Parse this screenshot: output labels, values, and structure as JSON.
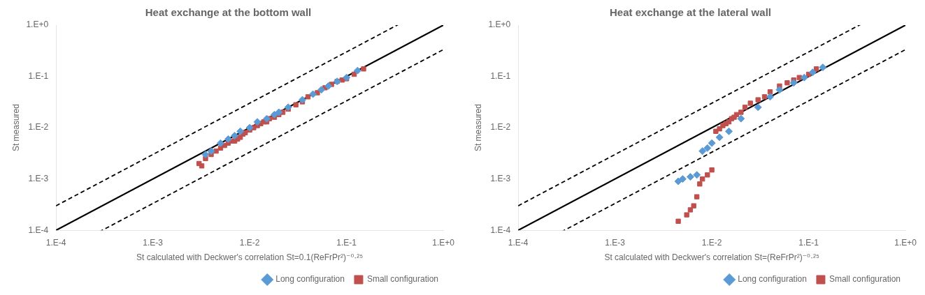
{
  "chart_data": [
    {
      "type": "scatter",
      "title": "Heat exchange at the bottom wall",
      "x_label": "St calculated with Deckwer's correlation St=0.1(ReFrPr²)⁻⁰·²⁵",
      "y_label": "St measured",
      "log": true,
      "grid": false,
      "legend": "lower right",
      "xlim": [
        0.0001,
        1
      ],
      "ylim": [
        0.0001,
        1
      ],
      "xticks": [
        {
          "value": 0.0001,
          "label": "1.E-4"
        },
        {
          "value": 0.001,
          "label": "1.E-3"
        },
        {
          "value": 0.01,
          "label": "1.E-2"
        },
        {
          "value": 0.1,
          "label": "1.E-1"
        },
        {
          "value": 1,
          "label": "1.E+0"
        }
      ],
      "yticks": [
        {
          "value": 0.0001,
          "label": "1.E-4"
        },
        {
          "value": 0.001,
          "label": "1.E-3"
        },
        {
          "value": 0.01,
          "label": "1.E-2"
        },
        {
          "value": 0.1,
          "label": "1.E-1"
        },
        {
          "value": 1,
          "label": "1.E+0"
        }
      ],
      "reference_lines": [
        {
          "factor": 1,
          "color": "black",
          "line_style": "solid"
        },
        {
          "factor": 3.0,
          "color": "black",
          "line_style": "dashed"
        }
      ],
      "series": [
        {
          "name": "Long configuration",
          "color": "#5b9bd5",
          "marker": "diamond",
          "x": [
            0.0035,
            0.004,
            0.005,
            0.006,
            0.007,
            0.008,
            0.01,
            0.012,
            0.015,
            0.018,
            0.02,
            0.025,
            0.035,
            0.045,
            0.055,
            0.065,
            0.08,
            0.1,
            0.13
          ],
          "values": [
            0.003,
            0.0035,
            0.005,
            0.006,
            0.007,
            0.0085,
            0.01,
            0.013,
            0.015,
            0.018,
            0.02,
            0.025,
            0.035,
            0.045,
            0.055,
            0.065,
            0.08,
            0.095,
            0.13
          ]
        },
        {
          "name": "Small configuration",
          "color": "#c0504d",
          "marker": "square",
          "x": [
            0.003,
            0.0032,
            0.0035,
            0.004,
            0.0045,
            0.005,
            0.0055,
            0.006,
            0.0065,
            0.007,
            0.0075,
            0.008,
            0.0085,
            0.009,
            0.01,
            0.011,
            0.012,
            0.013,
            0.014,
            0.015,
            0.016,
            0.018,
            0.02,
            0.022,
            0.025,
            0.03,
            0.035,
            0.04,
            0.05,
            0.06,
            0.07,
            0.08,
            0.09,
            0.1,
            0.12,
            0.15
          ],
          "values": [
            0.002,
            0.0018,
            0.0025,
            0.003,
            0.0035,
            0.004,
            0.0045,
            0.005,
            0.0055,
            0.0055,
            0.006,
            0.0065,
            0.0075,
            0.008,
            0.009,
            0.01,
            0.011,
            0.012,
            0.013,
            0.013,
            0.015,
            0.016,
            0.018,
            0.02,
            0.023,
            0.028,
            0.032,
            0.04,
            0.048,
            0.06,
            0.07,
            0.08,
            0.085,
            0.09,
            0.11,
            0.14
          ]
        }
      ]
    },
    {
      "type": "scatter",
      "title": "Heat exchange at the lateral wall",
      "x_label": "St calculated with Deckwer's correlation St=(ReFrPr²)⁻⁰·²⁵",
      "y_label": "St measured",
      "log": true,
      "grid": false,
      "legend": "lower right",
      "xlim": [
        0.0001,
        1
      ],
      "ylim": [
        0.0001,
        1
      ],
      "xticks": [
        {
          "value": 0.0001,
          "label": "1.E-4"
        },
        {
          "value": 0.001,
          "label": "1.E-3"
        },
        {
          "value": 0.01,
          "label": "1.E-2"
        },
        {
          "value": 0.1,
          "label": "1.E-1"
        },
        {
          "value": 1,
          "label": "1.E+0"
        }
      ],
      "yticks": [
        {
          "value": 0.0001,
          "label": "1.E-4"
        },
        {
          "value": 0.001,
          "label": "1.E-3"
        },
        {
          "value": 0.01,
          "label": "1.E-2"
        },
        {
          "value": 0.1,
          "label": "1.E-1"
        },
        {
          "value": 1,
          "label": "1.E+0"
        }
      ],
      "reference_lines": [
        {
          "factor": 1,
          "color": "black",
          "line_style": "solid"
        },
        {
          "factor": 3.0,
          "color": "black",
          "line_style": "dashed"
        }
      ],
      "series": [
        {
          "name": "Long configuration",
          "color": "#5b9bd5",
          "marker": "diamond",
          "x": [
            0.0045,
            0.005,
            0.006,
            0.007,
            0.008,
            0.009,
            0.01,
            0.012,
            0.015,
            0.02,
            0.03,
            0.04,
            0.05,
            0.07,
            0.09,
            0.11,
            0.14
          ],
          "values": [
            0.0009,
            0.001,
            0.0011,
            0.0012,
            0.0035,
            0.004,
            0.005,
            0.0065,
            0.0085,
            0.015,
            0.025,
            0.04,
            0.055,
            0.075,
            0.095,
            0.12,
            0.15
          ]
        },
        {
          "name": "Small configuration",
          "color": "#c0504d",
          "marker": "square",
          "x": [
            0.0045,
            0.0055,
            0.006,
            0.0065,
            0.007,
            0.0075,
            0.008,
            0.009,
            0.01,
            0.011,
            0.012,
            0.013,
            0.014,
            0.015,
            0.016,
            0.017,
            0.018,
            0.02,
            0.022,
            0.025,
            0.03,
            0.035,
            0.04,
            0.05,
            0.06,
            0.07,
            0.08,
            0.1,
            0.12
          ],
          "values": [
            0.00015,
            0.0002,
            0.00025,
            0.0003,
            0.00045,
            0.0008,
            0.001,
            0.0012,
            0.0015,
            0.0085,
            0.0095,
            0.011,
            0.012,
            0.013,
            0.015,
            0.016,
            0.018,
            0.02,
            0.025,
            0.03,
            0.035,
            0.04,
            0.05,
            0.065,
            0.075,
            0.085,
            0.095,
            0.11,
            0.14
          ]
        }
      ]
    }
  ]
}
